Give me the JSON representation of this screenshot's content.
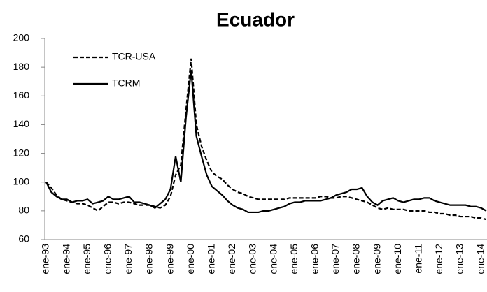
{
  "chart_data": {
    "type": "line",
    "title": "Ecuador",
    "categories": [
      "ene-93",
      null,
      null,
      null,
      "ene-94",
      null,
      null,
      null,
      "ene-95",
      null,
      null,
      null,
      "ene-96",
      null,
      null,
      null,
      "ene-97",
      null,
      null,
      null,
      "ene-98",
      null,
      null,
      null,
      "ene-99",
      null,
      null,
      null,
      "ene-00",
      null,
      null,
      null,
      "ene-01",
      null,
      null,
      null,
      "ene-02",
      null,
      null,
      null,
      "ene-03",
      null,
      null,
      null,
      "ene-04",
      null,
      null,
      null,
      "ene-05",
      null,
      null,
      null,
      "ene-06",
      null,
      null,
      null,
      "ene-07",
      null,
      null,
      null,
      "ene-08",
      null,
      null,
      null,
      "ene-09",
      null,
      null,
      null,
      "ene-10",
      null,
      null,
      null,
      "ene-11",
      null,
      null,
      null,
      "ene-12",
      null,
      null,
      null,
      "ene-13",
      null,
      null,
      null,
      "ene-14",
      null
    ],
    "series": [
      {
        "name": "TCR-USA",
        "color": "#000000",
        "dash": true,
        "values": [
          100,
          96,
          91,
          88,
          87,
          86,
          85,
          85,
          84,
          82,
          80,
          83,
          86,
          86,
          85,
          86,
          86,
          85,
          84,
          84,
          84,
          83,
          82,
          84,
          90,
          105,
          112,
          150,
          186,
          140,
          125,
          115,
          107,
          104,
          102,
          98,
          95,
          93,
          92,
          90,
          89,
          88,
          88,
          88,
          88,
          88,
          88,
          89,
          89,
          89,
          89,
          89,
          89,
          90,
          90,
          89,
          89,
          90,
          90,
          89,
          88,
          87,
          86,
          84,
          82,
          81,
          82,
          81,
          81,
          81,
          80,
          80,
          80,
          80,
          79,
          79,
          78,
          78,
          77,
          77,
          76,
          76,
          76,
          75,
          75,
          74
        ]
      },
      {
        "name": "TCRM",
        "color": "#000000",
        "dash": false,
        "values": [
          100,
          93,
          90,
          88,
          88,
          86,
          87,
          87,
          88,
          85,
          86,
          87,
          90,
          88,
          88,
          89,
          90,
          86,
          86,
          85,
          84,
          82,
          85,
          88,
          95,
          118,
          100,
          145,
          178,
          132,
          118,
          105,
          97,
          94,
          91,
          87,
          84,
          82,
          81,
          79,
          79,
          79,
          80,
          80,
          81,
          82,
          83,
          85,
          86,
          86,
          87,
          87,
          87,
          87,
          88,
          89,
          91,
          92,
          93,
          95,
          95,
          96,
          90,
          86,
          84,
          87,
          88,
          89,
          87,
          86,
          87,
          88,
          88,
          89,
          89,
          87,
          86,
          85,
          84,
          84,
          84,
          84,
          83,
          83,
          82,
          80
        ]
      }
    ],
    "ylim": [
      60,
      200
    ],
    "yticks": [
      60,
      80,
      100,
      120,
      140,
      160,
      180,
      200
    ],
    "grid": false,
    "legend": "upper left"
  }
}
